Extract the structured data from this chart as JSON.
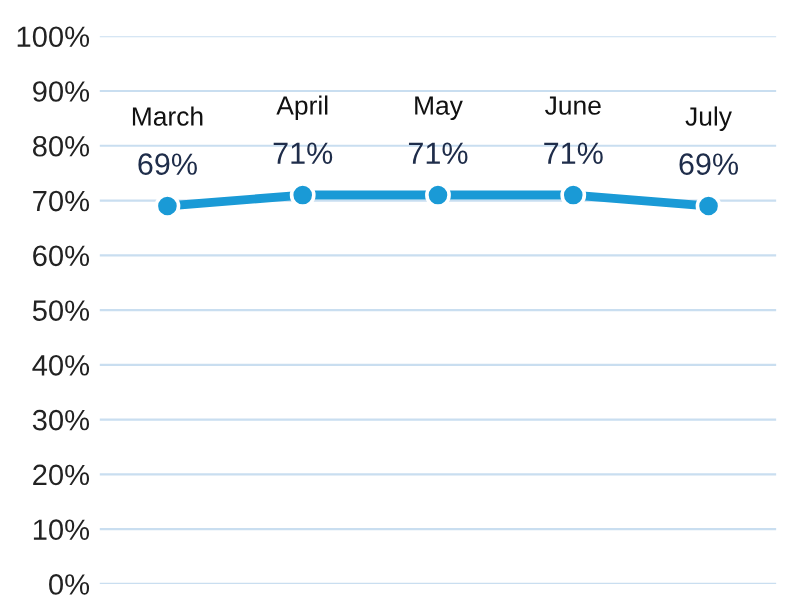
{
  "chart_data": {
    "type": "line",
    "categories": [
      "March",
      "April",
      "May",
      "June",
      "July"
    ],
    "series": [
      {
        "color": "#1a9ad6",
        "values": [
          69,
          71,
          71,
          71,
          69
        ]
      }
    ],
    "value_labels": [
      "69%",
      "71%",
      "71%",
      "71%",
      "69%"
    ],
    "ylim": [
      0,
      100
    ],
    "yticks": [
      {
        "value": 0,
        "label": "0%"
      },
      {
        "value": 10,
        "label": "10%"
      },
      {
        "value": 20,
        "label": "20%"
      },
      {
        "value": 30,
        "label": "30%"
      },
      {
        "value": 40,
        "label": "40%"
      },
      {
        "value": 50,
        "label": "50%"
      },
      {
        "value": 60,
        "label": "60%"
      },
      {
        "value": 70,
        "label": "70%"
      },
      {
        "value": 80,
        "label": "80%"
      },
      {
        "value": 90,
        "label": "90%"
      },
      {
        "value": 100,
        "label": "100%"
      }
    ],
    "grid": "y",
    "marker": "circle",
    "line_style": "solid",
    "tick_labels": "y"
  }
}
